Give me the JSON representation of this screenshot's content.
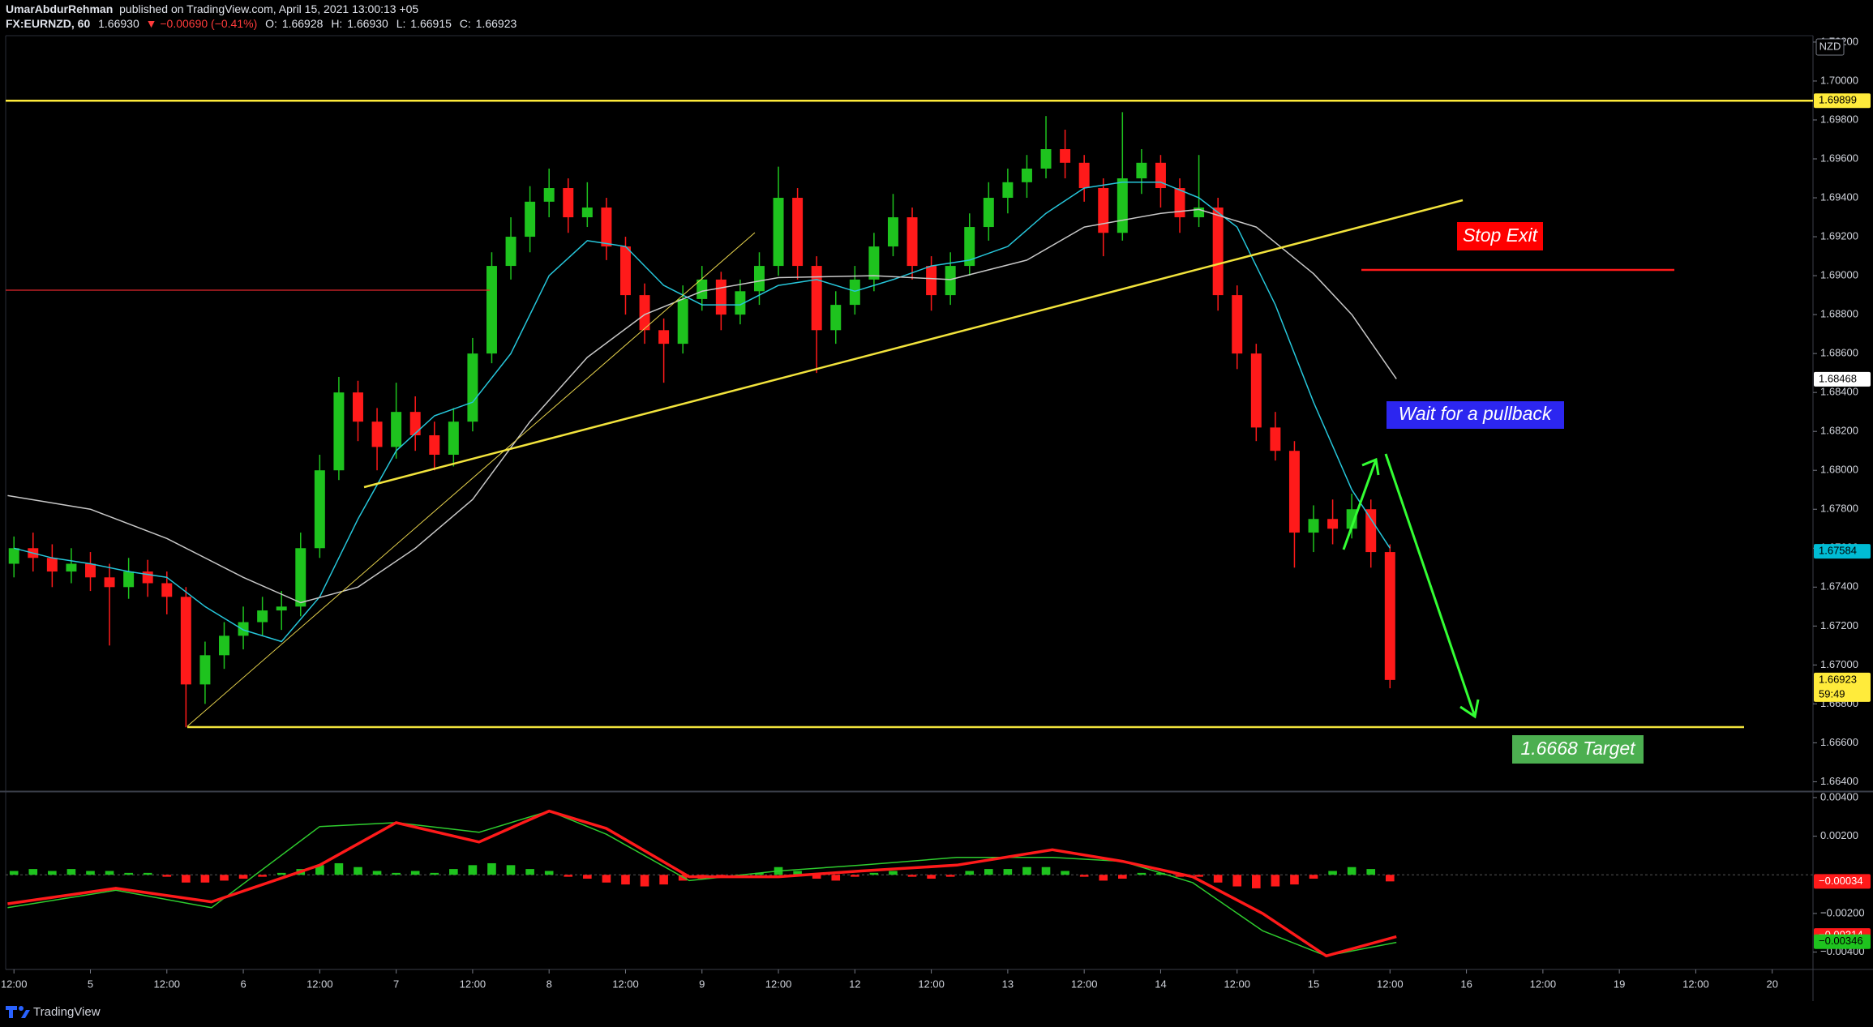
{
  "header": {
    "author": "UmarAbdurRehman",
    "published": "published on TradingView.com, April 15, 2021 13:00:13 +05",
    "symbol": "FX:EURNZD, 60",
    "last": "1.66930",
    "change": "▼ −0.00690 (−0.41%)",
    "o_label": "O:",
    "o": "1.66928",
    "h_label": "H:",
    "h": "1.66930",
    "l_label": "L:",
    "l": "1.66915",
    "c_label": "C:",
    "c": "1.66923"
  },
  "footer": {
    "brand": "TradingView"
  },
  "annotations": {
    "stop": "Stop Exit",
    "pullback": "Wait for a pullback",
    "target": "1.6668 Target"
  },
  "chart_data": [
    {
      "type": "candlestick",
      "currency": "NZD",
      "colors": {
        "up": "#1ec31e",
        "down": "#ff1a1a"
      },
      "x": [
        0,
        3,
        6,
        9,
        12,
        15,
        18,
        21,
        24,
        27,
        30,
        33,
        36,
        39,
        42,
        45,
        48,
        51,
        54,
        57,
        60,
        63,
        66,
        69,
        72,
        75,
        78,
        81,
        84,
        87,
        90,
        93,
        96,
        99,
        102,
        105,
        108,
        111,
        114,
        117,
        120,
        123,
        126,
        129,
        132,
        135,
        138,
        141,
        144,
        147,
        150,
        153,
        156,
        159,
        162,
        165,
        168,
        171,
        174,
        177,
        180,
        183,
        186,
        189,
        192,
        195,
        198,
        201,
        204,
        207,
        210,
        213,
        216
      ],
      "open": [
        1.6752,
        1.676,
        1.6755,
        1.6748,
        1.6752,
        1.6745,
        1.674,
        1.6748,
        1.6742,
        1.6735,
        1.669,
        1.6705,
        1.6715,
        1.6722,
        1.6728,
        1.673,
        1.676,
        1.68,
        1.684,
        1.6825,
        1.6812,
        1.683,
        1.6818,
        1.6808,
        1.6825,
        1.686,
        1.6905,
        1.692,
        1.6938,
        1.6945,
        1.693,
        1.6935,
        1.6915,
        1.689,
        1.6872,
        1.6865,
        1.6888,
        1.6898,
        1.688,
        1.6892,
        1.6905,
        1.694,
        1.6905,
        1.6872,
        1.6885,
        1.6898,
        1.6915,
        1.693,
        1.6905,
        1.689,
        1.6905,
        1.6925,
        1.694,
        1.6948,
        1.6955,
        1.6965,
        1.6958,
        1.6945,
        1.6922,
        1.695,
        1.6958,
        1.6945,
        1.693,
        1.6935,
        1.689,
        1.686,
        1.6822,
        1.681,
        1.6768,
        1.6775,
        1.677,
        1.678,
        1.6758
      ],
      "high": [
        1.6766,
        1.6768,
        1.6762,
        1.676,
        1.6758,
        1.6752,
        1.6755,
        1.6754,
        1.6748,
        1.674,
        1.6712,
        1.6722,
        1.673,
        1.6735,
        1.6738,
        1.6768,
        1.6808,
        1.6848,
        1.6846,
        1.6832,
        1.6845,
        1.6838,
        1.6825,
        1.6832,
        1.6868,
        1.6912,
        1.693,
        1.6946,
        1.6955,
        1.695,
        1.6948,
        1.694,
        1.692,
        1.6896,
        1.6878,
        1.6895,
        1.6905,
        1.6902,
        1.6898,
        1.6912,
        1.6956,
        1.6945,
        1.691,
        1.6892,
        1.6905,
        1.6922,
        1.6942,
        1.6935,
        1.691,
        1.6912,
        1.6932,
        1.6948,
        1.6955,
        1.6962,
        1.6982,
        1.6975,
        1.6962,
        1.695,
        1.6984,
        1.6965,
        1.6962,
        1.695,
        1.6962,
        1.694,
        1.6895,
        1.6865,
        1.683,
        1.6815,
        1.6782,
        1.6785,
        1.6788,
        1.6785,
        1.6762
      ],
      "low": [
        1.6745,
        1.6748,
        1.674,
        1.6742,
        1.6738,
        1.671,
        1.6734,
        1.6735,
        1.6726,
        1.6668,
        1.668,
        1.6698,
        1.6708,
        1.6715,
        1.6718,
        1.6725,
        1.6755,
        1.6795,
        1.6815,
        1.68,
        1.6806,
        1.681,
        1.68,
        1.6802,
        1.682,
        1.6855,
        1.6898,
        1.6912,
        1.693,
        1.6922,
        1.6925,
        1.6908,
        1.688,
        1.6865,
        1.6845,
        1.686,
        1.6882,
        1.6872,
        1.6875,
        1.6885,
        1.69,
        1.6898,
        1.685,
        1.6865,
        1.688,
        1.6892,
        1.691,
        1.6898,
        1.6882,
        1.6885,
        1.69,
        1.6918,
        1.6932,
        1.694,
        1.695,
        1.695,
        1.6938,
        1.691,
        1.6918,
        1.6942,
        1.6935,
        1.6922,
        1.6925,
        1.6882,
        1.6852,
        1.6815,
        1.6805,
        1.675,
        1.6758,
        1.6762,
        1.6765,
        1.675,
        1.6688
      ],
      "close": [
        1.676,
        1.6755,
        1.6748,
        1.6752,
        1.6745,
        1.674,
        1.6748,
        1.6742,
        1.6735,
        1.669,
        1.6705,
        1.6715,
        1.6722,
        1.6728,
        1.673,
        1.676,
        1.68,
        1.684,
        1.6825,
        1.6812,
        1.683,
        1.6818,
        1.6808,
        1.6825,
        1.686,
        1.6905,
        1.692,
        1.6938,
        1.6945,
        1.693,
        1.6935,
        1.6915,
        1.689,
        1.6872,
        1.6865,
        1.6888,
        1.6898,
        1.688,
        1.6892,
        1.6905,
        1.694,
        1.6905,
        1.6872,
        1.6885,
        1.6898,
        1.6915,
        1.693,
        1.6905,
        1.689,
        1.6905,
        1.6925,
        1.694,
        1.6948,
        1.6955,
        1.6965,
        1.6958,
        1.6945,
        1.6922,
        1.695,
        1.6958,
        1.6945,
        1.693,
        1.6935,
        1.689,
        1.686,
        1.6822,
        1.681,
        1.6768,
        1.6775,
        1.677,
        1.678,
        1.6758,
        1.66923
      ],
      "overlays": [
        {
          "color": "#26c6da",
          "x": [
            0,
            6,
            12,
            18,
            24,
            30,
            36,
            42,
            48,
            54,
            60,
            66,
            72,
            78,
            84,
            90,
            96,
            102,
            108,
            114,
            120,
            126,
            132,
            138,
            144,
            150,
            156,
            162,
            168,
            174,
            180,
            186,
            192,
            198,
            204,
            210,
            216
          ],
          "values": [
            1.676,
            1.6755,
            1.6752,
            1.6748,
            1.6745,
            1.673,
            1.6718,
            1.6712,
            1.6735,
            1.6775,
            1.681,
            1.6828,
            1.6835,
            1.686,
            1.69,
            1.6918,
            1.6915,
            1.6895,
            1.6885,
            1.6885,
            1.6895,
            1.6898,
            1.6892,
            1.6898,
            1.6905,
            1.6908,
            1.6915,
            1.6932,
            1.6945,
            1.6948,
            1.6948,
            1.694,
            1.6925,
            1.6885,
            1.6835,
            1.679,
            1.676
          ]
        },
        {
          "color": "#c8c8c8",
          "x": [
            -1,
            12,
            24,
            36,
            45,
            54,
            63,
            72,
            81,
            90,
            99,
            108,
            120,
            135,
            147,
            159,
            168,
            180,
            186,
            195,
            204,
            210,
            217
          ],
          "values": [
            1.6787,
            1.678,
            1.6765,
            1.6745,
            1.6732,
            1.674,
            1.676,
            1.6785,
            1.6825,
            1.6858,
            1.688,
            1.6892,
            1.6899,
            1.69,
            1.6898,
            1.6908,
            1.6925,
            1.6932,
            1.6934,
            1.6925,
            1.6901,
            1.688,
            1.6847
          ]
        }
      ],
      "xlim": [
        -1.3,
        282.4
      ],
      "xticks": [
        {
          "value": 0,
          "label": "12:00"
        },
        {
          "value": 12,
          "label": "5"
        },
        {
          "value": 24,
          "label": "12:00"
        },
        {
          "value": 36,
          "label": "6"
        },
        {
          "value": 48,
          "label": "12:00"
        },
        {
          "value": 60,
          "label": "7"
        },
        {
          "value": 72,
          "label": "12:00"
        },
        {
          "value": 84,
          "label": "8"
        },
        {
          "value": 96,
          "label": "12:00"
        },
        {
          "value": 108,
          "label": "9"
        },
        {
          "value": 120,
          "label": "12:00"
        },
        {
          "value": 132,
          "label": "12"
        },
        {
          "value": 144,
          "label": "12:00"
        },
        {
          "value": 156,
          "label": "13"
        },
        {
          "value": 168,
          "label": "12:00"
        },
        {
          "value": 180,
          "label": "14"
        },
        {
          "value": 192,
          "label": "12:00"
        },
        {
          "value": 204,
          "label": "15"
        },
        {
          "value": 216,
          "label": "12:00"
        },
        {
          "value": 228,
          "label": "16"
        },
        {
          "value": 240,
          "label": "12:00"
        },
        {
          "value": 252,
          "label": "19"
        },
        {
          "value": 264,
          "label": "12:00"
        },
        {
          "value": 276,
          "label": "20"
        }
      ],
      "ylim": [
        1.66356,
        1.70233
      ],
      "yticks": [
        {
          "value": 1.664,
          "label": "1.66400"
        },
        {
          "value": 1.666,
          "label": "1.66600"
        },
        {
          "value": 1.668,
          "label": "1.66800"
        },
        {
          "value": 1.67,
          "label": "1.67000"
        },
        {
          "value": 1.672,
          "label": "1.67200"
        },
        {
          "value": 1.674,
          "label": "1.67400"
        },
        {
          "value": 1.676,
          "label": "1.67600"
        },
        {
          "value": 1.678,
          "label": "1.67800"
        },
        {
          "value": 1.68,
          "label": "1.68000"
        },
        {
          "value": 1.682,
          "label": "1.68200"
        },
        {
          "value": 1.684,
          "label": "1.68400"
        },
        {
          "value": 1.686,
          "label": "1.68600"
        },
        {
          "value": 1.688,
          "label": "1.68800"
        },
        {
          "value": 1.69,
          "label": "1.69000"
        },
        {
          "value": 1.692,
          "label": "1.69200"
        },
        {
          "value": 1.694,
          "label": "1.69400"
        },
        {
          "value": 1.696,
          "label": "1.69600"
        },
        {
          "value": 1.698,
          "label": "1.69800"
        },
        {
          "value": 1.7,
          "label": "1.70000"
        },
        {
          "value": 1.702,
          "label": "1.70200"
        }
      ],
      "price_labels": [
        {
          "value": 1.69899,
          "label": "1.69899",
          "bg": "#ffeb3b",
          "fg": "#000000",
          "line": true
        },
        {
          "value": 1.68468,
          "label": "1.68468",
          "bg": "#ffffff",
          "fg": "#000000"
        },
        {
          "value": 1.67584,
          "label": "1.67584",
          "bg": "#00bcd4",
          "fg": "#000000"
        },
        {
          "value": 1.66923,
          "label": "1.66923",
          "sub": "59:49",
          "bg": "#ffeb3b",
          "fg": "#000000"
        }
      ]
    },
    {
      "type": "macd",
      "colors": {
        "up": "#1ec31e",
        "down": "#ff1a1a"
      },
      "x": [
        0,
        3,
        6,
        9,
        12,
        15,
        18,
        21,
        24,
        27,
        30,
        33,
        36,
        39,
        42,
        45,
        48,
        51,
        54,
        57,
        60,
        63,
        66,
        69,
        72,
        75,
        78,
        81,
        84,
        87,
        90,
        93,
        96,
        99,
        102,
        105,
        108,
        111,
        114,
        117,
        120,
        123,
        126,
        129,
        132,
        135,
        138,
        141,
        144,
        147,
        150,
        153,
        156,
        159,
        162,
        165,
        168,
        171,
        174,
        177,
        180,
        183,
        186,
        189,
        192,
        195,
        198,
        201,
        204,
        207,
        210,
        213,
        216
      ],
      "histogram": [
        0.0002,
        0.0003,
        0.0002,
        0.0003,
        0.0002,
        0.0002,
        0.0001,
        0.0001,
        -0.0001,
        -0.0004,
        -0.0004,
        -0.0003,
        -0.0002,
        -0.0001,
        0.0001,
        0.0003,
        0.0005,
        0.0006,
        0.0004,
        0.0002,
        0.0001,
        0.0002,
        0.0001,
        0.0003,
        0.0005,
        0.0006,
        0.0005,
        0.0003,
        0.0002,
        -0.0001,
        -0.0002,
        -0.0004,
        -0.0005,
        -0.0006,
        -0.0005,
        -0.0003,
        -0.0002,
        -0.0001,
        -0.0001,
        0.0001,
        0.0004,
        0.0002,
        -0.0002,
        -0.0003,
        -0.0001,
        0.0001,
        0.0002,
        -0.0001,
        -0.0002,
        -0.0001,
        0.0002,
        0.0003,
        0.0003,
        0.0004,
        0.0004,
        0.0002,
        -0.0001,
        -0.0003,
        -0.0002,
        0.0001,
        0.0001,
        -0.0001,
        -0.0001,
        -0.0004,
        -0.0006,
        -0.0007,
        -0.0006,
        -0.0005,
        -0.0002,
        0.0002,
        0.0004,
        0.0003,
        -0.00034
      ],
      "lines": [
        {
          "color": "#2ecc2e",
          "width": 1.5,
          "x": [
            -1,
            16,
            31,
            48,
            60,
            73,
            84,
            93,
            106,
            120,
            133,
            148,
            163,
            174,
            185,
            196,
            206,
            217
          ],
          "values": [
            -0.0017,
            -0.0008,
            -0.0017,
            0.0025,
            0.0027,
            0.0022,
            0.0033,
            0.0021,
            -0.0003,
            0.0002,
            0.0005,
            0.0009,
            0.0009,
            0.0007,
            -0.0004,
            -0.0029,
            -0.0042,
            -0.0035
          ]
        },
        {
          "color": "#ff1a1a",
          "width": 3.5,
          "x": [
            -1,
            16,
            31,
            48,
            60,
            73,
            84,
            93,
            106,
            120,
            133,
            148,
            163,
            174,
            185,
            196,
            206,
            217
          ],
          "values": [
            -0.0015,
            -0.0007,
            -0.0014,
            0.0005,
            0.0027,
            0.0017,
            0.0033,
            0.0024,
            -0.0001,
            -0.0001,
            0.0002,
            0.0005,
            0.0013,
            0.0007,
            -0.0001,
            -0.002,
            -0.0042,
            -0.0032
          ]
        }
      ],
      "xlim": [
        -1.3,
        282.4
      ],
      "ylim": [
        -0.0049,
        0.00425
      ],
      "yticks": [
        {
          "value": 0.004,
          "label": "0.00400"
        },
        {
          "value": 0.002,
          "label": "0.00200"
        },
        {
          "value": -0.002,
          "label": "−0.00200"
        },
        {
          "value": -0.004,
          "label": "−0.00400"
        }
      ],
      "price_labels": [
        {
          "value": -0.00034,
          "label": "−0.00034",
          "bg": "#ff1a1a",
          "fg": "#ffffff"
        },
        {
          "value": -0.00314,
          "label": "−0.00314",
          "bg": "#ff1a1a",
          "fg": "#ffffff"
        },
        {
          "value": -0.00346,
          "label": "−0.00346",
          "bg": "#1ec31e",
          "fg": "#000000"
        }
      ]
    }
  ]
}
